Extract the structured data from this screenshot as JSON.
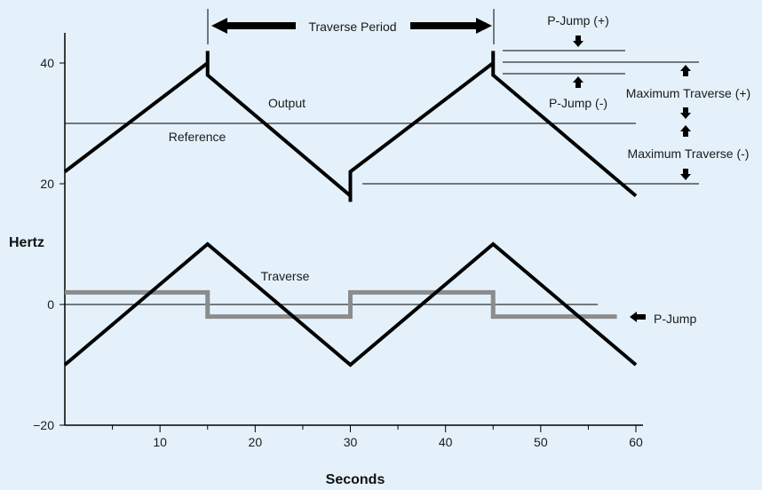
{
  "chart_data": {
    "type": "line",
    "title": "",
    "xlabel": "Seconds",
    "ylabel": "Hertz",
    "xlim": [
      0,
      60
    ],
    "ylim": [
      -20,
      45
    ],
    "x_ticks": [
      10,
      20,
      30,
      40,
      50,
      60
    ],
    "y_ticks": [
      -20,
      0,
      20,
      40
    ],
    "x_tick_labels": [
      "10",
      "20",
      "30",
      "40",
      "50",
      "60"
    ],
    "y_tick_labels": [
      "−20",
      "0",
      "20",
      "40"
    ],
    "grid": false,
    "series": [
      {
        "name": "Output",
        "color": "#000000",
        "x": [
          0,
          15,
          15,
          15,
          30,
          30,
          30,
          45,
          45,
          45,
          60
        ],
        "y": [
          22,
          40,
          42,
          38,
          18,
          17,
          22,
          40,
          42,
          38,
          18
        ]
      },
      {
        "name": "Reference",
        "color": "#000000",
        "x": [
          0,
          60
        ],
        "y": [
          30,
          30
        ]
      },
      {
        "name": "Traverse",
        "color": "#000000",
        "x": [
          0,
          15,
          30,
          45,
          60
        ],
        "y": [
          -10,
          10,
          -10,
          10,
          -10
        ]
      },
      {
        "name": "P-Jump",
        "color": "#8c8c8c",
        "x": [
          0,
          15,
          15,
          30,
          30,
          45,
          45,
          58
        ],
        "y": [
          2,
          2,
          -2,
          -2,
          2,
          2,
          -2,
          -2
        ]
      }
    ],
    "annotations": {
      "traverse_period": "Traverse Period",
      "p_jump_plus": "P-Jump (+)",
      "p_jump_minus": "P-Jump (-)",
      "max_traverse_plus": "Maximum Traverse (+)",
      "max_traverse_minus": "Maximum Traverse (-)",
      "output": "Output",
      "reference": "Reference",
      "traverse": "Traverse",
      "p_jump": "P-Jump"
    },
    "colors": {
      "background": "#e4f1fb",
      "line": "#000000",
      "pjump": "#8c8c8c"
    }
  }
}
